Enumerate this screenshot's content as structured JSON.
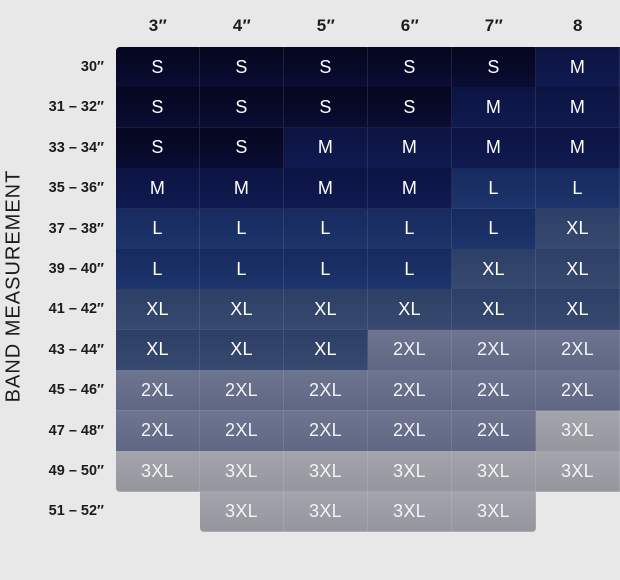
{
  "side_label": "BAND MEASUREMENT",
  "columns": [
    "3″",
    "4″",
    "5″",
    "6″",
    "7″",
    "8"
  ],
  "rows": [
    {
      "band": "30″",
      "sizes": [
        "S",
        "S",
        "S",
        "S",
        "S",
        "M"
      ]
    },
    {
      "band": "31 – 32″",
      "sizes": [
        "S",
        "S",
        "S",
        "S",
        "M",
        "M"
      ]
    },
    {
      "band": "33 – 34″",
      "sizes": [
        "S",
        "S",
        "M",
        "M",
        "M",
        "M"
      ]
    },
    {
      "band": "35 – 36″",
      "sizes": [
        "M",
        "M",
        "M",
        "M",
        "L",
        "L"
      ]
    },
    {
      "band": "37 – 38″",
      "sizes": [
        "L",
        "L",
        "L",
        "L",
        "L",
        "XL"
      ]
    },
    {
      "band": "39 – 40″",
      "sizes": [
        "L",
        "L",
        "L",
        "L",
        "XL",
        "XL"
      ]
    },
    {
      "band": "41 – 42″",
      "sizes": [
        "XL",
        "XL",
        "XL",
        "XL",
        "XL",
        "XL"
      ]
    },
    {
      "band": "43 – 44″",
      "sizes": [
        "XL",
        "XL",
        "XL",
        "2XL",
        "2XL",
        "2XL"
      ]
    },
    {
      "band": "45 – 46″",
      "sizes": [
        "2XL",
        "2XL",
        "2XL",
        "2XL",
        "2XL",
        "2XL"
      ]
    },
    {
      "band": "47 – 48″",
      "sizes": [
        "2XL",
        "2XL",
        "2XL",
        "2XL",
        "2XL",
        "3XL"
      ]
    },
    {
      "band": "49 – 50″",
      "sizes": [
        "3XL",
        "3XL",
        "3XL",
        "3XL",
        "3XL",
        "3XL"
      ]
    },
    {
      "band": "51 – 52″",
      "sizes": [
        "",
        "3XL",
        "3XL",
        "3XL",
        "3XL",
        ""
      ]
    }
  ]
}
